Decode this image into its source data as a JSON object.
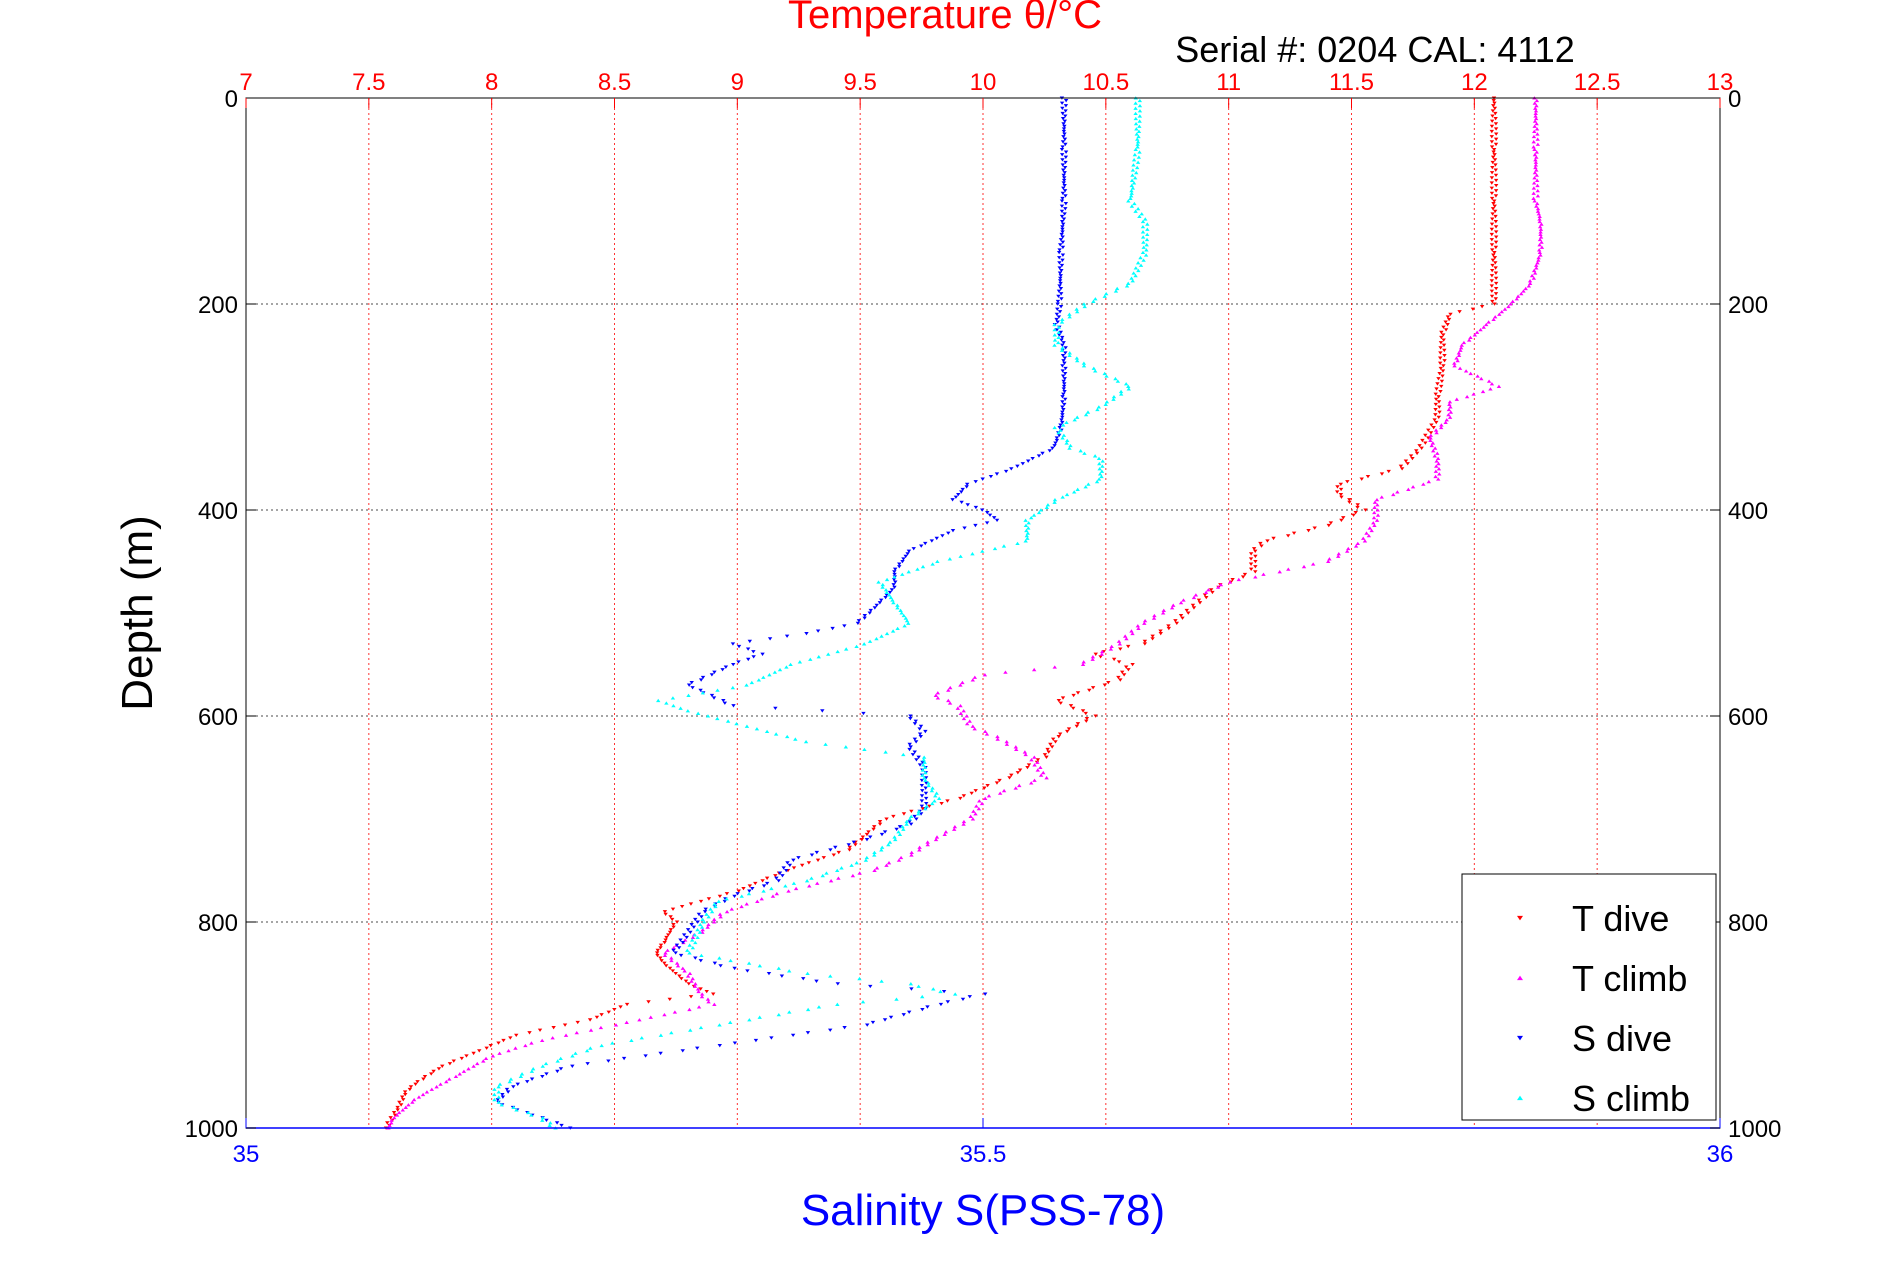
{
  "chart_data": {
    "type": "scatter",
    "title": "Temperature θ/°C",
    "subtitle": "Serial #: 0204  CAL: 4112",
    "ylabel": "Depth (m)",
    "xlabel": "Salinity S(PSS-78)",
    "x_top_label": "Temperature θ/°C",
    "ylim": [
      0,
      1000
    ],
    "y_reversed": true,
    "y_ticks": [
      "0",
      "200",
      "400",
      "600",
      "800",
      "1000"
    ],
    "temperature_axis": {
      "lim": [
        7,
        13
      ],
      "ticks": [
        "7",
        "7.5",
        "8",
        "8.5",
        "9",
        "9.5",
        "10",
        "10.5",
        "11",
        "11.5",
        "12",
        "12.5",
        "13"
      ],
      "color": "#ff0000"
    },
    "salinity_axis": {
      "lim": [
        35,
        36
      ],
      "ticks": [
        "35",
        "35.5",
        "36"
      ],
      "color": "#0000ff"
    },
    "grid": true,
    "legend_position": "bottom-right",
    "series": [
      {
        "name": "T dive",
        "axis": "temperature",
        "color": "#ff0000",
        "marker": "triangle-down",
        "points": [
          [
            0,
            12.08
          ],
          [
            50,
            12.08
          ],
          [
            100,
            12.08
          ],
          [
            150,
            12.08
          ],
          [
            200,
            12.08
          ],
          [
            210,
            11.9
          ],
          [
            230,
            11.87
          ],
          [
            260,
            11.87
          ],
          [
            290,
            11.85
          ],
          [
            310,
            11.85
          ],
          [
            340,
            11.78
          ],
          [
            360,
            11.7
          ],
          [
            375,
            11.45
          ],
          [
            385,
            11.45
          ],
          [
            400,
            11.55
          ],
          [
            415,
            11.4
          ],
          [
            430,
            11.15
          ],
          [
            440,
            11.1
          ],
          [
            460,
            11.1
          ],
          [
            475,
            10.95
          ],
          [
            495,
            10.85
          ],
          [
            510,
            10.78
          ],
          [
            530,
            10.65
          ],
          [
            540,
            10.45
          ],
          [
            550,
            10.6
          ],
          [
            565,
            10.55
          ],
          [
            585,
            10.3
          ],
          [
            600,
            10.45
          ],
          [
            620,
            10.3
          ],
          [
            640,
            10.25
          ],
          [
            660,
            10.1
          ],
          [
            680,
            9.9
          ],
          [
            700,
            9.6
          ],
          [
            720,
            9.5
          ],
          [
            730,
            9.45
          ],
          [
            750,
            9.2
          ],
          [
            770,
            9.0
          ],
          [
            790,
            8.7
          ],
          [
            800,
            8.75
          ],
          [
            820,
            8.7
          ],
          [
            830,
            8.67
          ],
          [
            840,
            8.7
          ],
          [
            860,
            8.8
          ],
          [
            870,
            8.9
          ],
          [
            880,
            8.55
          ],
          [
            895,
            8.4
          ],
          [
            910,
            8.1
          ],
          [
            925,
            7.95
          ],
          [
            940,
            7.8
          ],
          [
            955,
            7.7
          ],
          [
            965,
            7.65
          ],
          [
            980,
            7.62
          ],
          [
            1000,
            7.57
          ]
        ]
      },
      {
        "name": "T climb",
        "axis": "temperature",
        "color": "#ff00ff",
        "marker": "triangle-up",
        "points": [
          [
            0,
            12.25
          ],
          [
            50,
            12.25
          ],
          [
            100,
            12.25
          ],
          [
            120,
            12.27
          ],
          [
            150,
            12.27
          ],
          [
            180,
            12.23
          ],
          [
            200,
            12.15
          ],
          [
            220,
            12.05
          ],
          [
            240,
            11.95
          ],
          [
            260,
            11.92
          ],
          [
            280,
            12.1
          ],
          [
            295,
            11.9
          ],
          [
            310,
            11.9
          ],
          [
            330,
            11.82
          ],
          [
            350,
            11.85
          ],
          [
            370,
            11.85
          ],
          [
            390,
            11.6
          ],
          [
            410,
            11.6
          ],
          [
            430,
            11.55
          ],
          [
            450,
            11.4
          ],
          [
            470,
            11.0
          ],
          [
            490,
            10.8
          ],
          [
            510,
            10.65
          ],
          [
            530,
            10.55
          ],
          [
            550,
            10.4
          ],
          [
            560,
            10.0
          ],
          [
            570,
            9.9
          ],
          [
            580,
            9.8
          ],
          [
            590,
            9.9
          ],
          [
            610,
            9.95
          ],
          [
            620,
            10.05
          ],
          [
            640,
            10.2
          ],
          [
            660,
            10.25
          ],
          [
            680,
            10.0
          ],
          [
            700,
            9.95
          ],
          [
            720,
            9.8
          ],
          [
            735,
            9.7
          ],
          [
            750,
            9.55
          ],
          [
            770,
            9.2
          ],
          [
            790,
            8.95
          ],
          [
            810,
            8.85
          ],
          [
            830,
            8.7
          ],
          [
            850,
            8.8
          ],
          [
            870,
            8.85
          ],
          [
            880,
            8.9
          ],
          [
            900,
            8.5
          ],
          [
            915,
            8.2
          ],
          [
            930,
            8.0
          ],
          [
            950,
            7.85
          ],
          [
            970,
            7.7
          ],
          [
            990,
            7.6
          ],
          [
            1000,
            7.58
          ]
        ]
      },
      {
        "name": "S dive",
        "axis": "salinity",
        "color": "#0000ff",
        "marker": "triangle-down",
        "points": [
          [
            0,
            35.555
          ],
          [
            50,
            35.555
          ],
          [
            100,
            35.555
          ],
          [
            150,
            35.553
          ],
          [
            200,
            35.552
          ],
          [
            220,
            35.55
          ],
          [
            240,
            35.555
          ],
          [
            260,
            35.555
          ],
          [
            290,
            35.555
          ],
          [
            320,
            35.553
          ],
          [
            340,
            35.548
          ],
          [
            360,
            35.52
          ],
          [
            375,
            35.49
          ],
          [
            390,
            35.48
          ],
          [
            400,
            35.5
          ],
          [
            410,
            35.51
          ],
          [
            420,
            35.48
          ],
          [
            440,
            35.45
          ],
          [
            460,
            35.44
          ],
          [
            475,
            35.44
          ],
          [
            490,
            35.43
          ],
          [
            510,
            35.415
          ],
          [
            520,
            35.38
          ],
          [
            530,
            35.33
          ],
          [
            540,
            35.35
          ],
          [
            550,
            35.33
          ],
          [
            570,
            35.3
          ],
          [
            590,
            35.33
          ],
          [
            600,
            35.45
          ],
          [
            615,
            35.46
          ],
          [
            630,
            35.45
          ],
          [
            650,
            35.46
          ],
          [
            670,
            35.46
          ],
          [
            690,
            35.46
          ],
          [
            705,
            35.45
          ],
          [
            720,
            35.42
          ],
          [
            740,
            35.37
          ],
          [
            760,
            35.36
          ],
          [
            775,
            35.33
          ],
          [
            790,
            35.31
          ],
          [
            810,
            35.3
          ],
          [
            830,
            35.29
          ],
          [
            845,
            35.33
          ],
          [
            860,
            35.4
          ],
          [
            870,
            35.5
          ],
          [
            880,
            35.47
          ],
          [
            900,
            35.42
          ],
          [
            920,
            35.32
          ],
          [
            940,
            35.22
          ],
          [
            960,
            35.18
          ],
          [
            975,
            35.17
          ],
          [
            990,
            35.2
          ],
          [
            1000,
            35.22
          ]
        ]
      },
      {
        "name": "S climb",
        "axis": "salinity",
        "color": "#00ffff",
        "marker": "triangle-up",
        "points": [
          [
            0,
            35.605
          ],
          [
            50,
            35.605
          ],
          [
            100,
            35.6
          ],
          [
            120,
            35.61
          ],
          [
            150,
            35.61
          ],
          [
            180,
            35.6
          ],
          [
            200,
            35.57
          ],
          [
            220,
            35.55
          ],
          [
            240,
            35.55
          ],
          [
            260,
            35.57
          ],
          [
            280,
            35.6
          ],
          [
            300,
            35.58
          ],
          [
            320,
            35.55
          ],
          [
            340,
            35.56
          ],
          [
            350,
            35.58
          ],
          [
            370,
            35.58
          ],
          [
            390,
            35.55
          ],
          [
            410,
            35.53
          ],
          [
            430,
            35.53
          ],
          [
            450,
            35.47
          ],
          [
            470,
            35.43
          ],
          [
            490,
            35.44
          ],
          [
            510,
            35.45
          ],
          [
            530,
            35.42
          ],
          [
            550,
            35.37
          ],
          [
            570,
            35.34
          ],
          [
            585,
            35.28
          ],
          [
            595,
            35.3
          ],
          [
            610,
            35.34
          ],
          [
            625,
            35.38
          ],
          [
            640,
            35.46
          ],
          [
            660,
            35.46
          ],
          [
            680,
            35.47
          ],
          [
            700,
            35.45
          ],
          [
            720,
            35.44
          ],
          [
            740,
            35.42
          ],
          [
            760,
            35.38
          ],
          [
            780,
            35.32
          ],
          [
            800,
            35.31
          ],
          [
            830,
            35.3
          ],
          [
            850,
            35.38
          ],
          [
            860,
            35.45
          ],
          [
            870,
            35.48
          ],
          [
            880,
            35.4
          ],
          [
            900,
            35.32
          ],
          [
            920,
            35.24
          ],
          [
            940,
            35.2
          ],
          [
            960,
            35.17
          ],
          [
            975,
            35.17
          ],
          [
            990,
            35.2
          ],
          [
            1000,
            35.21
          ]
        ]
      }
    ]
  }
}
